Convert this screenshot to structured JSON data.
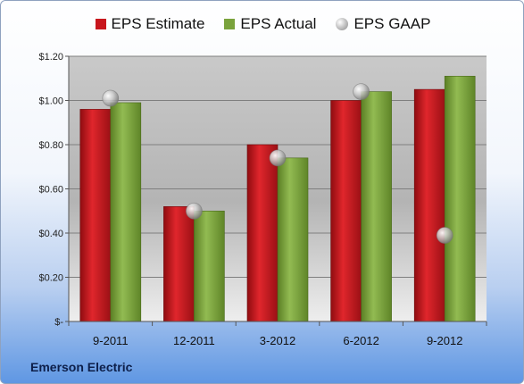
{
  "chart_data": {
    "type": "bar",
    "categories": [
      "9-2011",
      "12-2011",
      "3-2012",
      "6-2012",
      "9-2012"
    ],
    "series": [
      {
        "name": "EPS Estimate",
        "type": "bar",
        "color": "#c8161d",
        "values": [
          0.96,
          0.52,
          0.8,
          1.0,
          1.05
        ]
      },
      {
        "name": "EPS Actual",
        "type": "bar",
        "color": "#7aa33c",
        "values": [
          0.99,
          0.5,
          0.74,
          1.04,
          1.11
        ]
      },
      {
        "name": "EPS GAAP",
        "type": "scatter",
        "color": "#a6a6a6",
        "values": [
          1.01,
          0.5,
          0.74,
          1.04,
          0.39
        ]
      }
    ],
    "yticks": [
      "$-",
      "$0.20",
      "$0.40",
      "$0.60",
      "$0.80",
      "$1.00",
      "$1.20"
    ],
    "ylim": [
      0,
      1.2
    ],
    "grid": true,
    "legend_position": "top"
  },
  "footer": {
    "company": "Emerson Electric"
  }
}
